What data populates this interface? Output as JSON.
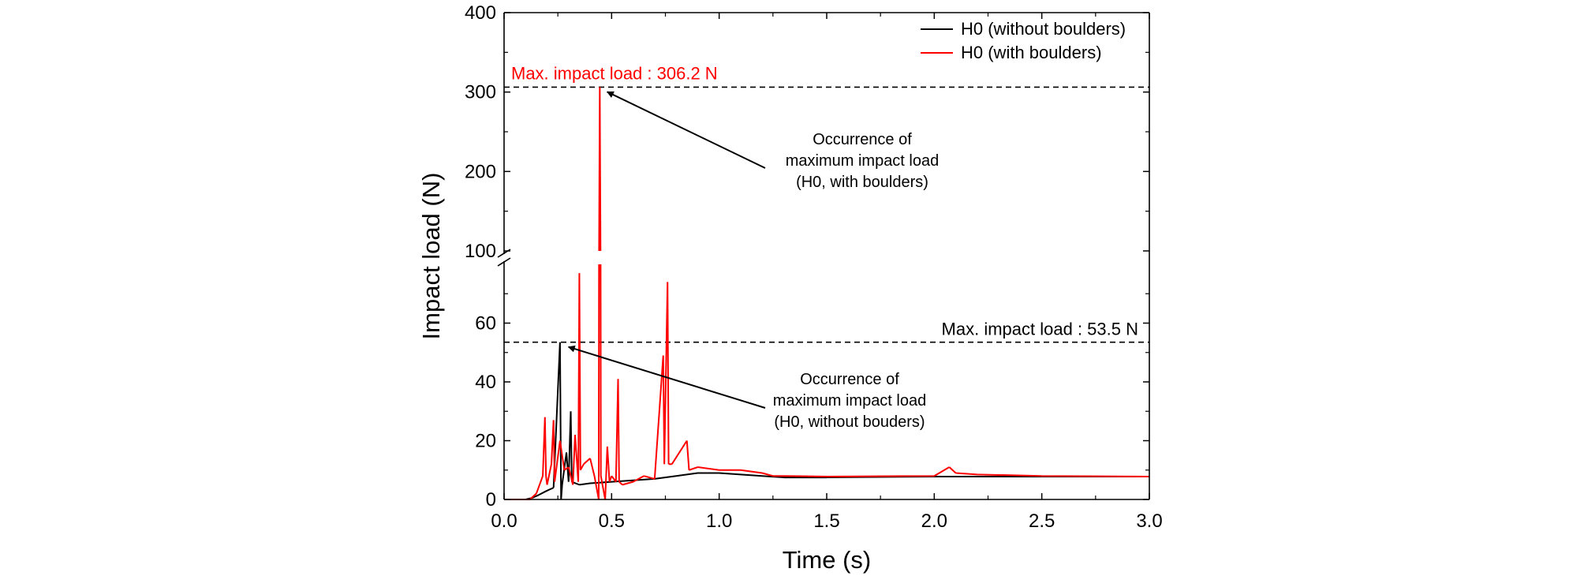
{
  "chart_data": {
    "type": "line",
    "title": "",
    "xlabel": "Time (s)",
    "ylabel": "Impact load (N)",
    "xlim": [
      0.0,
      3.0
    ],
    "xticks": [
      "0.0",
      "0.5",
      "1.0",
      "1.5",
      "2.0",
      "2.5",
      "3.0"
    ],
    "y_axis": {
      "broken": true,
      "lower_range": [
        0,
        80
      ],
      "upper_range": [
        100,
        400
      ],
      "lower_ticks": [
        "0",
        "20",
        "40",
        "60"
      ],
      "upper_ticks": [
        "100",
        "200",
        "300",
        "400"
      ]
    },
    "grid": false,
    "legend_position": "top-right",
    "series": [
      {
        "name": "H0 (without boulders)",
        "color": "#000000",
        "points": [
          [
            0.0,
            0.0
          ],
          [
            0.1,
            0.0
          ],
          [
            0.13,
            0.5
          ],
          [
            0.16,
            1.5
          ],
          [
            0.2,
            3.0
          ],
          [
            0.23,
            4.0
          ],
          [
            0.26,
            53.5
          ],
          [
            0.265,
            0.0
          ],
          [
            0.27,
            5.0
          ],
          [
            0.29,
            16.0
          ],
          [
            0.3,
            6.0
          ],
          [
            0.31,
            30.0
          ],
          [
            0.315,
            6.0
          ],
          [
            0.35,
            5.0
          ],
          [
            0.4,
            5.5
          ],
          [
            0.5,
            6.0
          ],
          [
            0.6,
            6.5
          ],
          [
            0.7,
            7.0
          ],
          [
            0.8,
            8.0
          ],
          [
            0.9,
            9.0
          ],
          [
            1.0,
            9.0
          ],
          [
            1.1,
            8.5
          ],
          [
            1.2,
            8.0
          ],
          [
            1.3,
            7.5
          ],
          [
            1.5,
            7.5
          ],
          [
            2.0,
            7.8
          ],
          [
            2.5,
            7.8
          ],
          [
            3.0,
            7.8
          ]
        ]
      },
      {
        "name": "H0 (with boulders)",
        "color": "#ff0000",
        "points": [
          [
            0.0,
            0.0
          ],
          [
            0.12,
            0.0
          ],
          [
            0.15,
            2.0
          ],
          [
            0.18,
            8.0
          ],
          [
            0.19,
            28.0
          ],
          [
            0.195,
            8.0
          ],
          [
            0.2,
            5.0
          ],
          [
            0.22,
            12.0
          ],
          [
            0.23,
            27.0
          ],
          [
            0.235,
            6.0
          ],
          [
            0.26,
            20.0
          ],
          [
            0.28,
            10.0
          ],
          [
            0.3,
            11.0
          ],
          [
            0.32,
            5.0
          ],
          [
            0.33,
            22.0
          ],
          [
            0.345,
            6.0
          ],
          [
            0.35,
            77.0
          ],
          [
            0.355,
            10.0
          ],
          [
            0.37,
            12.0
          ],
          [
            0.4,
            14.0
          ],
          [
            0.42,
            8.0
          ],
          [
            0.44,
            0.0
          ],
          [
            0.445,
            306.2
          ],
          [
            0.45,
            8.0
          ],
          [
            0.47,
            0.0
          ],
          [
            0.48,
            18.0
          ],
          [
            0.49,
            6.0
          ],
          [
            0.5,
            8.0
          ],
          [
            0.52,
            6.0
          ],
          [
            0.53,
            41.0
          ],
          [
            0.535,
            6.0
          ],
          [
            0.55,
            5.0
          ],
          [
            0.6,
            6.0
          ],
          [
            0.65,
            8.0
          ],
          [
            0.7,
            7.0
          ],
          [
            0.74,
            49.0
          ],
          [
            0.745,
            12.0
          ],
          [
            0.76,
            74.0
          ],
          [
            0.765,
            12.0
          ],
          [
            0.78,
            12.0
          ],
          [
            0.85,
            20.0
          ],
          [
            0.86,
            10.0
          ],
          [
            0.9,
            11.0
          ],
          [
            1.0,
            10.0
          ],
          [
            1.1,
            10.0
          ],
          [
            1.2,
            9.0
          ],
          [
            1.25,
            8.0
          ],
          [
            1.3,
            8.0
          ],
          [
            1.5,
            7.8
          ],
          [
            2.0,
            8.0
          ],
          [
            2.07,
            11.0
          ],
          [
            2.1,
            9.0
          ],
          [
            2.2,
            8.5
          ],
          [
            2.5,
            8.0
          ],
          [
            3.0,
            7.8
          ]
        ]
      }
    ],
    "reference_lines": [
      {
        "y": 306.2,
        "style": "dashed",
        "label": "Max. impact load : 306.2 N",
        "label_color": "#ff0000"
      },
      {
        "y": 53.5,
        "style": "dashed",
        "label": "Max. impact load : 53.5 N",
        "label_color": "#000000"
      }
    ],
    "annotations": [
      {
        "lines": [
          "Occurrence of",
          "maximum impact load",
          "(H0, with boulders)"
        ],
        "points_to": [
          0.45,
          306.2
        ]
      },
      {
        "lines": [
          "Occurrence of",
          "maximum impact load",
          "(H0, without bouders)"
        ],
        "points_to": [
          0.27,
          53.5
        ]
      }
    ]
  }
}
